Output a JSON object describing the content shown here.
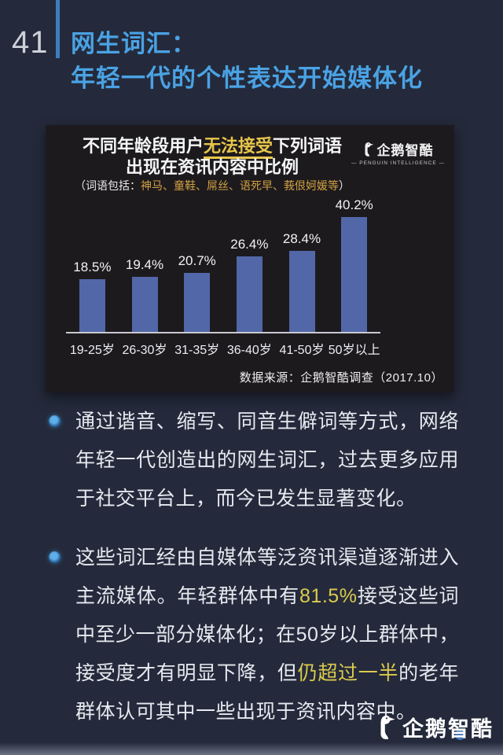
{
  "page": {
    "number": "41"
  },
  "header": {
    "title_line1": "网生词汇：",
    "title_line2": "年轻一代的个性表达开始媒体化",
    "accent_color": "#4aa2e4"
  },
  "chart_panel": {
    "logo": {
      "name": "企鹅智酷",
      "subtitle": "— PENGUIN INTELLIGENCE —"
    },
    "title_line1_segments": [
      {
        "t": "不同年龄段用户"
      },
      {
        "t": "无法接受",
        "style": "hl-underline"
      },
      {
        "t": "下列词语"
      }
    ],
    "title_line2": "出现在资讯内容中比例",
    "subtitle_segments": [
      {
        "t": "（词语包括："
      },
      {
        "t": "神马、童鞋、屌丝、语死早、莪佷妸媛等",
        "style": "orange"
      },
      {
        "t": "）"
      }
    ],
    "source": "数据来源：企鹅智酷调查（2017.10）"
  },
  "chart_data": {
    "type": "bar",
    "title": "不同年龄段用户无法接受下列词语出现在资讯内容中比例",
    "subtitle": "（词语包括：神马、童鞋、屌丝、语死早、莪佷妸媛等）",
    "categories": [
      "19-25岁",
      "26-30岁",
      "31-35岁",
      "36-40岁",
      "41-50岁",
      "50岁以上"
    ],
    "values": [
      18.5,
      19.4,
      20.7,
      26.4,
      28.4,
      40.2
    ],
    "value_labels": [
      "18.5%",
      "19.4%",
      "20.7%",
      "26.4%",
      "28.4%",
      "40.2%"
    ],
    "unit": "%",
    "ylim": [
      0,
      45
    ],
    "grid": false,
    "legend": "none",
    "bar_color": "#5267a8",
    "source": "数据来源：企鹅智酷调查（2017.10）"
  },
  "bullets": [
    {
      "segments": [
        {
          "t": "通过谐音、缩写、同音生僻词等方式，网络年轻一代创造出的网生词汇，过去更多应用于社交平台上，而今已发生显著变化。"
        }
      ]
    },
    {
      "segments": [
        {
          "t": "这些词汇经由自媒体等泛资讯渠道逐渐进入主流媒体。年轻群体中有"
        },
        {
          "t": "81.5%",
          "style": "hl"
        },
        {
          "t": "接受这些词中至少一部分媒体化；在50岁以上群体中，接受度才有明显下降，但"
        },
        {
          "t": "仍超过一半",
          "style": "hl"
        },
        {
          "t": "的老年群体认可其中一些出现于资讯内容中。"
        }
      ]
    }
  ],
  "footer_logo": {
    "name": "企鹅智酷"
  }
}
